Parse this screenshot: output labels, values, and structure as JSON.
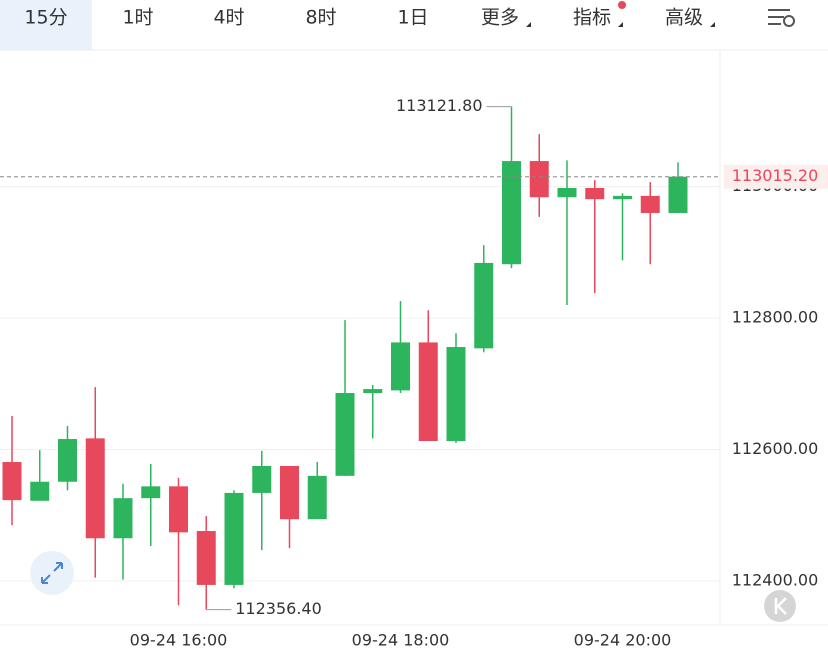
{
  "tabs": [
    "15分",
    "1时",
    "4时",
    "8时",
    "1日",
    "更多",
    "指标",
    "高级"
  ],
  "chart_data": {
    "type": "candlestick",
    "categories": [
      null,
      null,
      null,
      null,
      null,
      null,
      "09-24 16:00",
      null,
      null,
      null,
      null,
      null,
      null,
      null,
      "09-24 18:00",
      null,
      null,
      null,
      null,
      null,
      null,
      null,
      "09-24 20:00",
      null,
      null
    ],
    "open": [
      112581,
      112522,
      112551,
      112617,
      112465,
      112526,
      112544,
      112476,
      112394,
      112534,
      112575,
      112494,
      112560,
      112686,
      112690,
      112763,
      112613,
      112754,
      112882,
      113039,
      112984,
      112998,
      112981,
      112986,
      112960
    ],
    "high": [
      112651,
      112599,
      112636,
      112695,
      112548,
      112578,
      112557,
      112499,
      112538,
      112598,
      112575,
      112581,
      112797,
      112698,
      112826,
      112812,
      112777,
      112911,
      113121.8,
      113080,
      113040,
      113010,
      112990,
      113007,
      113037
    ],
    "low": [
      112485,
      112522,
      112538,
      112405,
      112402,
      112453,
      112363,
      112356.4,
      112389,
      112447,
      112450,
      112494,
      112560,
      112617,
      112686,
      112613,
      112610,
      112748,
      112876,
      112954,
      112820,
      112838,
      112888,
      112882,
      112960
    ],
    "close": [
      112523,
      112551,
      112616,
      112465,
      112526,
      112544,
      112474,
      112394,
      112534,
      112575,
      112494,
      112560,
      112686,
      112692,
      112763,
      112613,
      112756,
      112884,
      113039,
      112984,
      112998,
      112981,
      112986,
      112960,
      113015.2
    ],
    "up_color": "#2db55d",
    "down_color": "#e8485b",
    "ylim": [
      112333,
      113208
    ],
    "yticks": [
      {
        "value": 112400,
        "label": "112400.00"
      },
      {
        "value": 112600,
        "label": "112600.00"
      },
      {
        "value": 112800,
        "label": "112800.00"
      },
      {
        "value": 113000,
        "label": "113000.00"
      }
    ],
    "grid": true,
    "annotations": [
      {
        "value": 113121.8,
        "label": "113121.80"
      },
      {
        "value": 112356.4,
        "label": "112356.40"
      }
    ],
    "last_price": {
      "value": 113015.2,
      "label": "113015.20"
    }
  }
}
